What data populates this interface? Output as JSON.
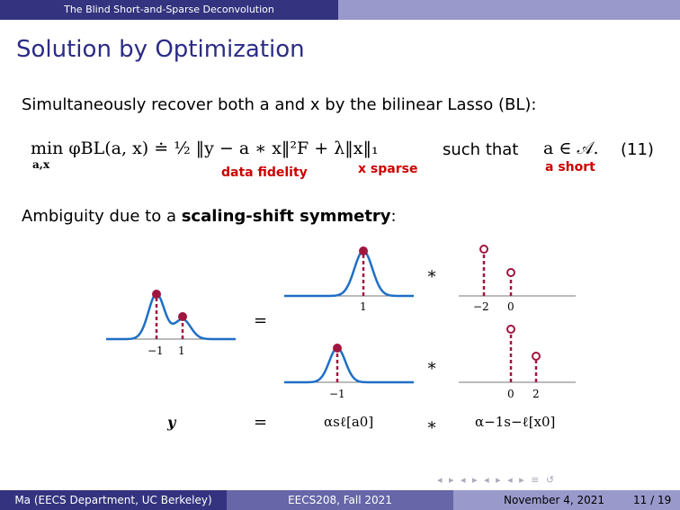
{
  "header": {
    "section_title": "The Blind Short-and-Sparse Deconvolution"
  },
  "slide": {
    "title": "Solution by Optimization",
    "intro_text": "Simultaneously recover both a and x by the bilinear Lasso (BL):",
    "equation": {
      "lhs": "min φBL(a, x) ≐ ½ ‖y − a ∗ x‖²F + λ‖x‖₁",
      "subscript": "a,x",
      "such_that": "such that",
      "constraint": "a ∈ 𝒜.",
      "number": "(11)",
      "annot_fidelity": "data fidelity",
      "annot_sparse": "x sparse",
      "annot_short": "a short"
    },
    "ambiguity_prefix": "Ambiguity due to a ",
    "ambiguity_bold": "scaling-shift symmetry",
    "ambiguity_suffix": ":"
  },
  "figure": {
    "y_ticks": [
      "−1",
      "1"
    ],
    "top_a_tick": "1",
    "top_x_ticks": [
      "−2",
      "0"
    ],
    "bot_a_tick": "−1",
    "bot_x_ticks": [
      "0",
      "2"
    ],
    "equals": "=",
    "conv": "∗",
    "label_y": "y",
    "label_equals": "=",
    "label_a": "αsℓ[a0]",
    "label_conv": "∗",
    "label_x": "α−1s−ℓ[x0]",
    "curve_color": "#1f6fc5",
    "stem_color": "#a0163f"
  },
  "footer": {
    "author": "Ma (EECS Department, UC Berkeley)",
    "course": "EECS208, Fall 2021",
    "date": "November 4, 2021",
    "page": "11 / 19"
  }
}
